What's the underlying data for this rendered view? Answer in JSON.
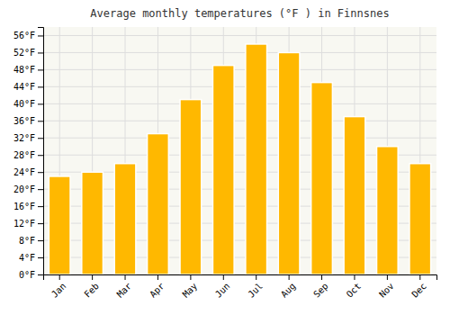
{
  "chart_data": {
    "type": "bar",
    "title": "Average monthly temperatures (°F ) in Finnsnes",
    "categories": [
      "Jan",
      "Feb",
      "Mar",
      "Apr",
      "May",
      "Jun",
      "Jul",
      "Aug",
      "Sep",
      "Oct",
      "Nov",
      "Dec"
    ],
    "values": [
      23,
      24,
      26,
      33,
      41,
      49,
      54,
      52,
      45,
      37,
      30,
      26
    ],
    "color": "#FFB800",
    "ylim": [
      0,
      58
    ],
    "yticks": [
      {
        "value": 0,
        "label": "0°F"
      },
      {
        "value": 4,
        "label": "4°F"
      },
      {
        "value": 8,
        "label": "8°F"
      },
      {
        "value": 12,
        "label": "12°F"
      },
      {
        "value": 16,
        "label": "16°F"
      },
      {
        "value": 20,
        "label": "20°F"
      },
      {
        "value": 24,
        "label": "24°F"
      },
      {
        "value": 28,
        "label": "28°F"
      },
      {
        "value": 32,
        "label": "32°F"
      },
      {
        "value": 36,
        "label": "36°F"
      },
      {
        "value": 40,
        "label": "40°F"
      },
      {
        "value": 44,
        "label": "44°F"
      },
      {
        "value": 48,
        "label": "48°F"
      },
      {
        "value": 52,
        "label": "52°F"
      },
      {
        "value": 56,
        "label": "56°F"
      }
    ],
    "grid": true
  }
}
